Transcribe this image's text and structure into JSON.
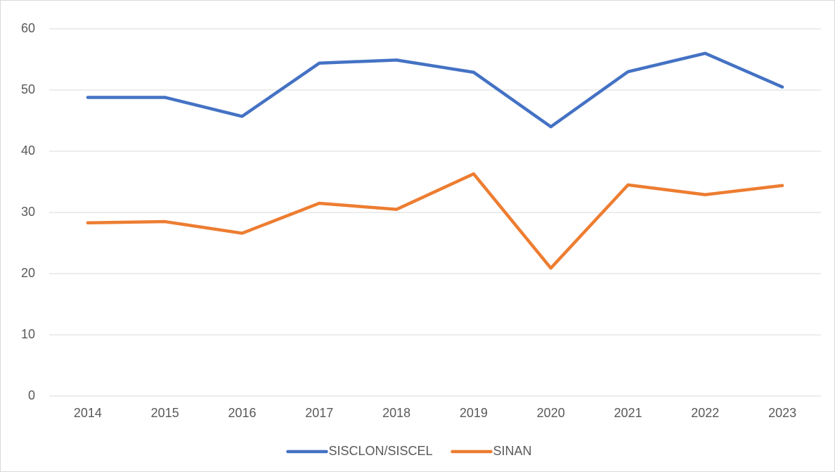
{
  "chart_data": {
    "type": "line",
    "categories": [
      "2014",
      "2015",
      "2016",
      "2017",
      "2018",
      "2019",
      "2020",
      "2021",
      "2022",
      "2023"
    ],
    "series": [
      {
        "name": "SISCLON/SISCEL",
        "color": "#4472c4",
        "values": [
          48.8,
          48.8,
          45.7,
          54.4,
          54.9,
          52.9,
          44.0,
          53.0,
          56.0,
          50.5
        ]
      },
      {
        "name": "SINAN",
        "color": "#ed7d31",
        "values": [
          28.3,
          28.5,
          26.6,
          31.5,
          30.5,
          36.3,
          20.9,
          34.5,
          32.9,
          34.4
        ]
      }
    ],
    "ylim": [
      0,
      60
    ],
    "yticks": [
      0,
      10,
      20,
      30,
      40,
      50,
      60
    ],
    "grid": true,
    "legend": "bottom"
  }
}
